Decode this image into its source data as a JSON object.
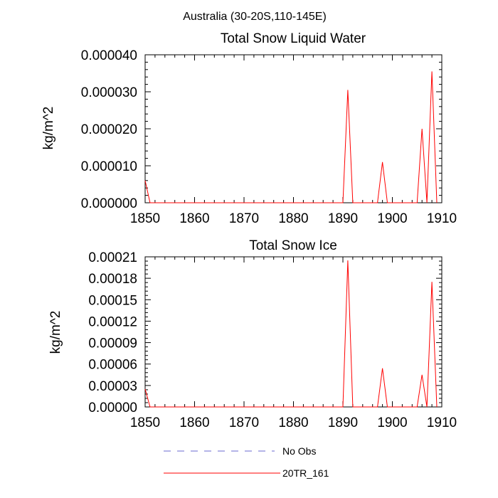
{
  "page_title": "Australia (30-20S,110-145E)",
  "chart_data": [
    {
      "type": "line",
      "title": "Total Snow Liquid Water",
      "xlabel": "",
      "ylabel": "kg/m^2",
      "xlim": [
        1850,
        1910
      ],
      "ylim": [
        0,
        4e-05
      ],
      "xticks": [
        "1850",
        "1860",
        "1870",
        "1880",
        "1890",
        "1900",
        "1910"
      ],
      "yticks": [
        "0.000000",
        "0.000010",
        "0.000020",
        "0.000030",
        "0.000040"
      ],
      "series": [
        {
          "name": "20TR_161",
          "color": "#ff0000",
          "x": [
            1850,
            1851,
            1890,
            1891,
            1892,
            1897,
            1898,
            1899,
            1905,
            1906,
            1907,
            1908,
            1909
          ],
          "y": [
            6e-06,
            0,
            0,
            3.05e-05,
            0,
            0,
            1.1e-05,
            0,
            0,
            2e-05,
            0,
            3.55e-05,
            0
          ]
        }
      ]
    },
    {
      "type": "line",
      "title": "Total Snow Ice",
      "xlabel": "",
      "ylabel": "kg/m^2",
      "xlim": [
        1850,
        1910
      ],
      "ylim": [
        0,
        0.00021
      ],
      "xticks": [
        "1850",
        "1860",
        "1870",
        "1880",
        "1890",
        "1900",
        "1910"
      ],
      "yticks": [
        "0.00000",
        "0.00003",
        "0.00006",
        "0.00009",
        "0.00012",
        "0.00015",
        "0.00018",
        "0.00021"
      ],
      "series": [
        {
          "name": "20TR_161",
          "color": "#ff0000",
          "x": [
            1850,
            1851,
            1890,
            1891,
            1892,
            1897,
            1898,
            1899,
            1905,
            1906,
            1907,
            1908,
            1909
          ],
          "y": [
            2.5e-05,
            0,
            0,
            0.000205,
            0,
            0,
            5.4e-05,
            0,
            0,
            4.5e-05,
            0,
            0.000175,
            0
          ]
        }
      ]
    }
  ],
  "legend": [
    {
      "label": "No Obs",
      "color": "#6a6ad0",
      "style": "dashed"
    },
    {
      "label": "20TR_161",
      "color": "#ff0000",
      "style": "solid"
    }
  ]
}
